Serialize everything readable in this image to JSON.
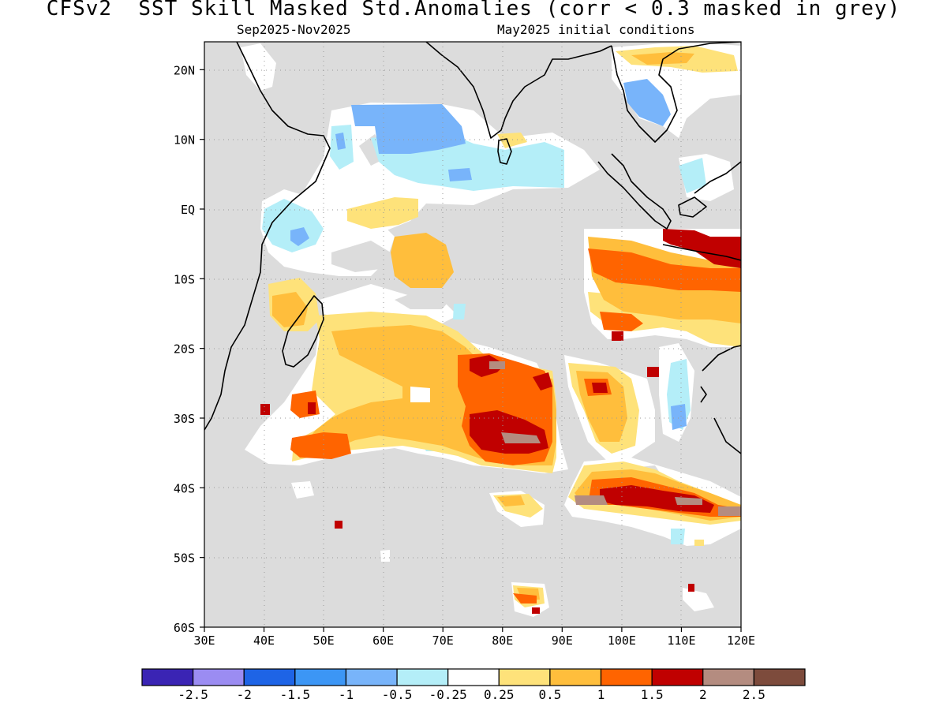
{
  "title": "CFSv2  SST Skill Masked Std.Anomalies (corr < 0.3 masked in grey)",
  "subtitle_left": "Sep2025-Nov2025",
  "subtitle_right": "May2025 initial conditions",
  "map": {
    "lon_range": [
      30,
      120
    ],
    "lat_range": [
      -60,
      24
    ],
    "lon_ticks": [
      "30E",
      "40E",
      "50E",
      "60E",
      "70E",
      "80E",
      "90E",
      "100E",
      "110E",
      "120E"
    ],
    "lon_values": [
      30,
      40,
      50,
      60,
      70,
      80,
      90,
      100,
      110,
      120
    ],
    "lat_ticks": [
      "20N",
      "10N",
      "EQ",
      "10S",
      "20S",
      "30S",
      "40S",
      "50S",
      "60S"
    ],
    "lat_values": [
      20,
      10,
      0,
      -10,
      -20,
      -30,
      -40,
      -50,
      -60
    ],
    "mask_color": "#dcdcdc",
    "grid": "dotted"
  },
  "colorbar": {
    "labels": [
      "-2.5",
      "-2",
      "-1.5",
      "-1",
      "-0.5",
      "-0.25",
      "0.25",
      "0.5",
      "1",
      "1.5",
      "2",
      "2.5"
    ],
    "colors": [
      "#3a24b4",
      "#9b8cf2",
      "#1e64e6",
      "#3c96f5",
      "#78b4fa",
      "#b4eef8",
      "#ffffff",
      "#fee27a",
      "#ffbe3c",
      "#ff6400",
      "#c00000",
      "#b48c80",
      "#7d4b3c"
    ]
  }
}
